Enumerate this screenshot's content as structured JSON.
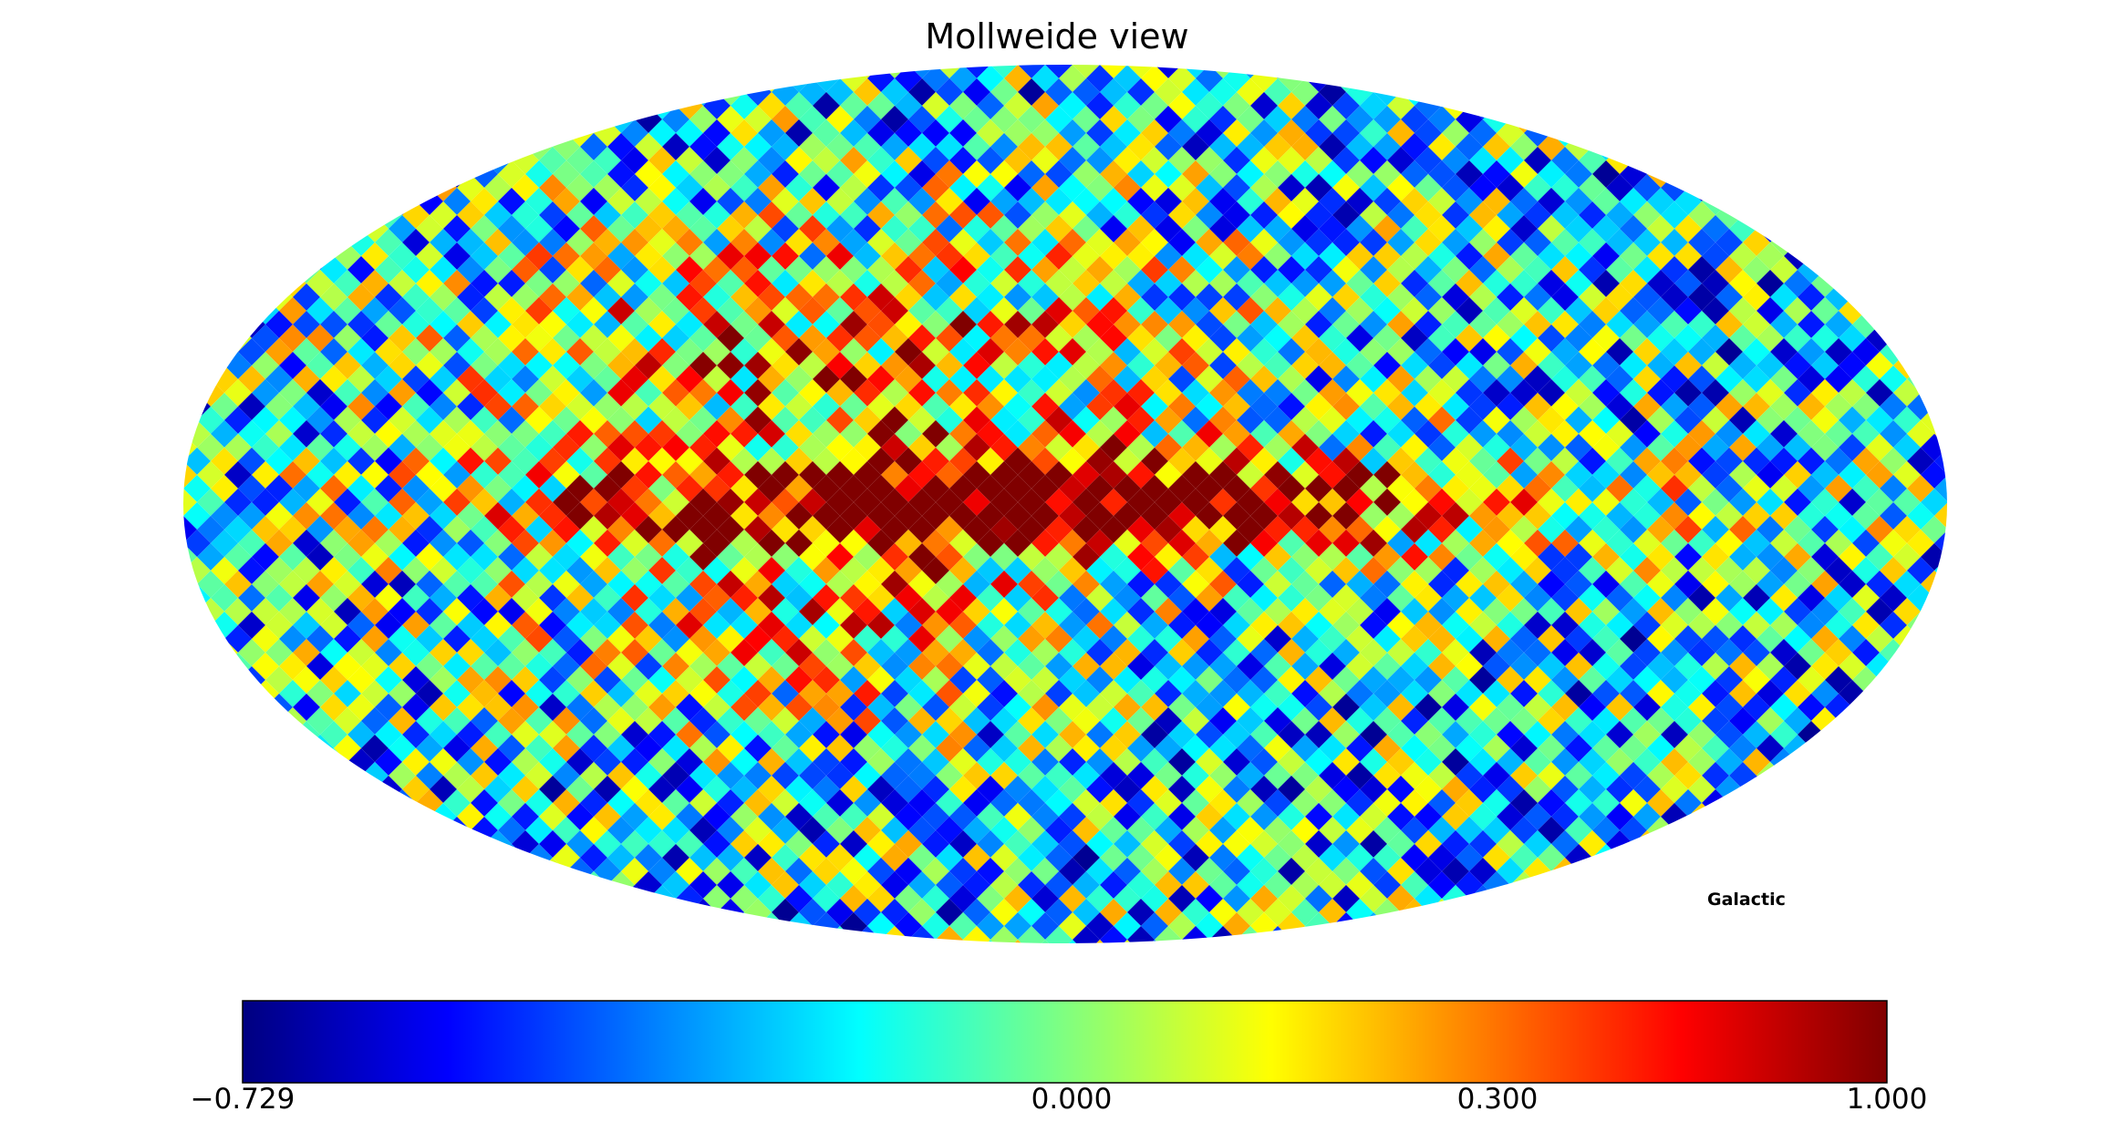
{
  "chart_data": {
    "type": "heatmap",
    "title": "Mollweide view",
    "projection": "Mollweide",
    "coordinate_system_label": "Galactic",
    "colormap": "jet",
    "colorbar": {
      "min": -0.729,
      "max": 1.0,
      "tick_values": [
        -0.729,
        0.0,
        0.3,
        1.0
      ],
      "tick_labels": [
        "−0.729",
        "0.000",
        "0.300",
        "1.000"
      ]
    },
    "features": {
      "galactic_plane_band_value": 0.95,
      "north_lobe_value": 0.6,
      "background_mean": -0.1
    }
  }
}
